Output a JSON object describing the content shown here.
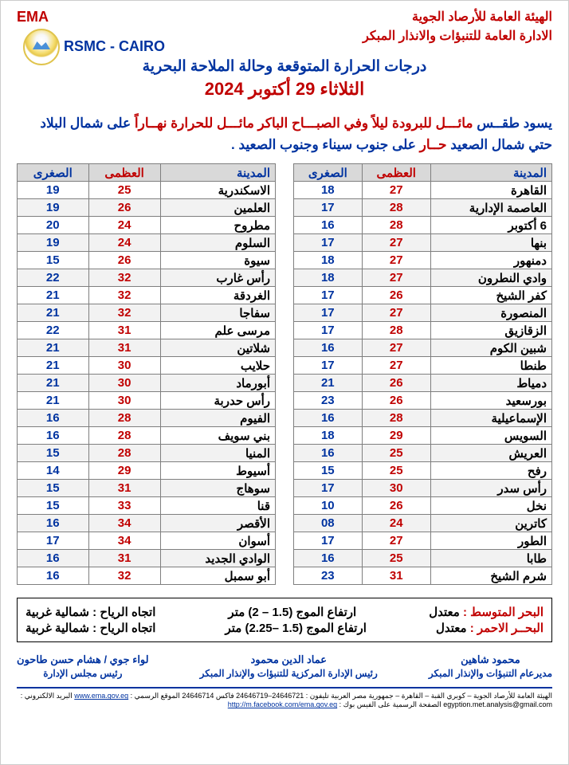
{
  "header": {
    "ema": "EMA",
    "rsmc": "RSMC - CAIRO",
    "auth1": "الهيئة العامة للأرصاد الجوية",
    "auth2": "الادارة العامة للتنبؤات والانذار المبكر",
    "title": "درجات الحرارة المتوقعة وحالة الملاحة البحرية",
    "date": "الثلاثاء 29 أكتوبر 2024"
  },
  "blurb": {
    "lead": "يسود طقــس ",
    "cool": "مائـــل للبرودة ليلاً وفي الصبـــاح الباكر ",
    "warm_lead": "مائـــل للحرارة نهــاراً ",
    "tail1": "على شمال البلاد حتي شمال الصعيد ",
    "hot": "حــار ",
    "tail2": "على جنوب سيناء وجنوب الصعيد ."
  },
  "table_header": {
    "city": "المدينة",
    "max": "العظمى",
    "min": "الصغرى"
  },
  "right_table": {
    "rows": [
      {
        "c": "القاهرة",
        "h": "27",
        "l": "18"
      },
      {
        "c": "العاصمة الإدارية",
        "h": "28",
        "l": "17"
      },
      {
        "c": "6 أكتوبر",
        "h": "28",
        "l": "16"
      },
      {
        "c": "بنها",
        "h": "27",
        "l": "17"
      },
      {
        "c": "دمنهور",
        "h": "27",
        "l": "18"
      },
      {
        "c": "وادي النطرون",
        "h": "27",
        "l": "18"
      },
      {
        "c": "كفر الشيخ",
        "h": "26",
        "l": "17"
      },
      {
        "c": "المنصورة",
        "h": "27",
        "l": "17"
      },
      {
        "c": "الزقازيق",
        "h": "28",
        "l": "17"
      },
      {
        "c": "شبين الكوم",
        "h": "27",
        "l": "16"
      },
      {
        "c": "طنطا",
        "h": "27",
        "l": "17"
      },
      {
        "c": "دمياط",
        "h": "26",
        "l": "21"
      },
      {
        "c": "بورسعيد",
        "h": "26",
        "l": "23"
      },
      {
        "c": "الإسماعيلية",
        "h": "28",
        "l": "16"
      },
      {
        "c": "السويس",
        "h": "29",
        "l": "18"
      },
      {
        "c": "العريش",
        "h": "25",
        "l": "16"
      },
      {
        "c": "رفح",
        "h": "25",
        "l": "15"
      },
      {
        "c": "رأس سدر",
        "h": "30",
        "l": "17"
      },
      {
        "c": "نخل",
        "h": "26",
        "l": "10"
      },
      {
        "c": "كاترين",
        "h": "24",
        "l": "08"
      },
      {
        "c": "الطور",
        "h": "27",
        "l": "17"
      },
      {
        "c": "طابا",
        "h": "25",
        "l": "16"
      },
      {
        "c": "شرم الشيخ",
        "h": "31",
        "l": "23"
      }
    ]
  },
  "left_table": {
    "rows": [
      {
        "c": "الاسكندرية",
        "h": "25",
        "l": "19"
      },
      {
        "c": "العلمين",
        "h": "26",
        "l": "19"
      },
      {
        "c": "مطروح",
        "h": "24",
        "l": "20"
      },
      {
        "c": "السلوم",
        "h": "24",
        "l": "19"
      },
      {
        "c": "سيوة",
        "h": "26",
        "l": "15"
      },
      {
        "c": "رأس غارب",
        "h": "32",
        "l": "22"
      },
      {
        "c": "الغردقة",
        "h": "32",
        "l": "21"
      },
      {
        "c": "سفاجا",
        "h": "32",
        "l": "21"
      },
      {
        "c": "مرسى علم",
        "h": "31",
        "l": "22"
      },
      {
        "c": "شلاتين",
        "h": "31",
        "l": "21"
      },
      {
        "c": "حلايب",
        "h": "30",
        "l": "21"
      },
      {
        "c": "أبورماد",
        "h": "30",
        "l": "21"
      },
      {
        "c": "رأس حدربة",
        "h": "30",
        "l": "21"
      },
      {
        "c": "الفيوم",
        "h": "28",
        "l": "16"
      },
      {
        "c": "بني سويف",
        "h": "28",
        "l": "16"
      },
      {
        "c": "المنيا",
        "h": "28",
        "l": "15"
      },
      {
        "c": "أسيوط",
        "h": "29",
        "l": "14"
      },
      {
        "c": "سوهاج",
        "h": "31",
        "l": "15"
      },
      {
        "c": "قنا",
        "h": "33",
        "l": "15"
      },
      {
        "c": "الأقصر",
        "h": "34",
        "l": "16"
      },
      {
        "c": "أسوان",
        "h": "34",
        "l": "17"
      },
      {
        "c": "الوادي الجديد",
        "h": "31",
        "l": "16"
      },
      {
        "c": "أبو سمبل",
        "h": "32",
        "l": "16"
      }
    ]
  },
  "sea": {
    "med_label": "البحر المتوسط :",
    "med_state": "معتدل",
    "med_wave": "ارتفاع الموج (1.5 – 2) متر",
    "med_wind_label": "اتجاه الرياح :",
    "med_wind": "شمالية غربية",
    "red_label": "البحــر الاحمر :",
    "red_state": "معتدل",
    "red_wave": "ارتفاع الموج (1.5 –2.25) متر",
    "red_wind_label": "اتجاه الرياح :",
    "red_wind": "شمالية غربية"
  },
  "sigs": {
    "s1_name": "محمود شاهين",
    "s1_role": "مديرعام التنبؤات والإنذار المبكر",
    "s2_name": "عماد الدين محمود",
    "s2_role": "رئيس الإدارة المركزية للتنبؤات والإنذار المبكر",
    "s3_name": "لواء جوي / هشام حسن طاحون",
    "s3_role": "رئيس مجلس الإدارة"
  },
  "footer": {
    "text": "الهيئة العامة للأرصاد الجوية – كوبري القبة – القاهرة – جمهورية مصر العربية  تليفون : 24646721–24646719  فاكس 24646714  الموقع الرسمي :",
    "site": "www.ema.gov.eg",
    "mid": "  البريد الالكتروني : egyption.met.analysis@gmail.com  الصفحة الرسمية على الفيس بوك :",
    "fb": "http://m.facebook.com/ema.gov.eg"
  }
}
